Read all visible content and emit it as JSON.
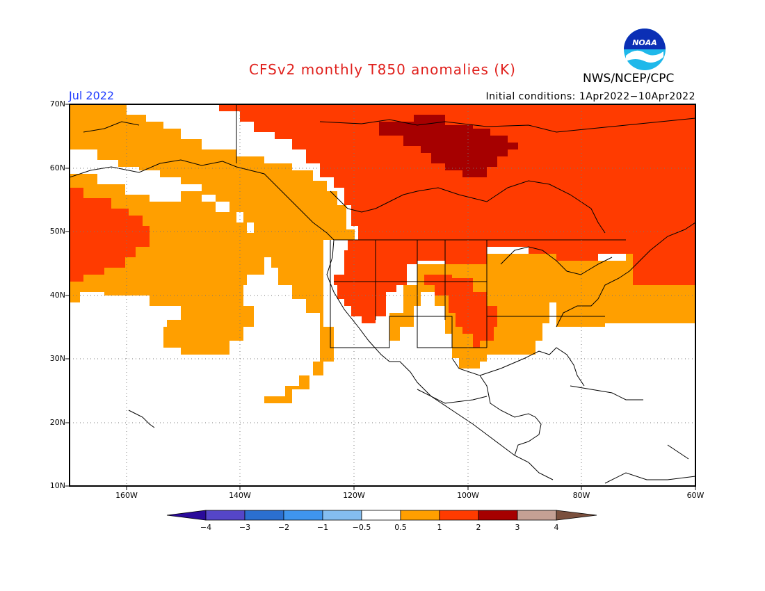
{
  "title": "CFSv2 monthly T850 anomalies (K)",
  "agency": "NWS/NCEP/CPC",
  "logo_text": "NOAA",
  "month": "Jul 2022",
  "initial_conditions": "Initial conditions: 1Apr2022−10Apr2022",
  "lat_labels": [
    "70N",
    "60N",
    "50N",
    "40N",
    "30N",
    "20N",
    "10N"
  ],
  "lon_labels": [
    "160W",
    "140W",
    "120W",
    "100W",
    "80W",
    "60W"
  ],
  "colorbar": {
    "labels": [
      "−4",
      "−3",
      "−2",
      "−1",
      "−0.5",
      "0.5",
      "1",
      "2",
      "3",
      "4"
    ],
    "colors": [
      "#2a0a9a",
      "#5546c8",
      "#2b6fd0",
      "#3f95ee",
      "#84bdf0",
      "#ffffff",
      "#ff9f00",
      "#ff3b00",
      "#a60000",
      "#c4a094",
      "#7a4f3d"
    ]
  },
  "colors": {
    "band_0_5_1": "#ff9f00",
    "band_1_2": "#ff3b00",
    "band_2_3": "#a60000",
    "title": "#e0201c",
    "month": "#1f3cff"
  }
}
